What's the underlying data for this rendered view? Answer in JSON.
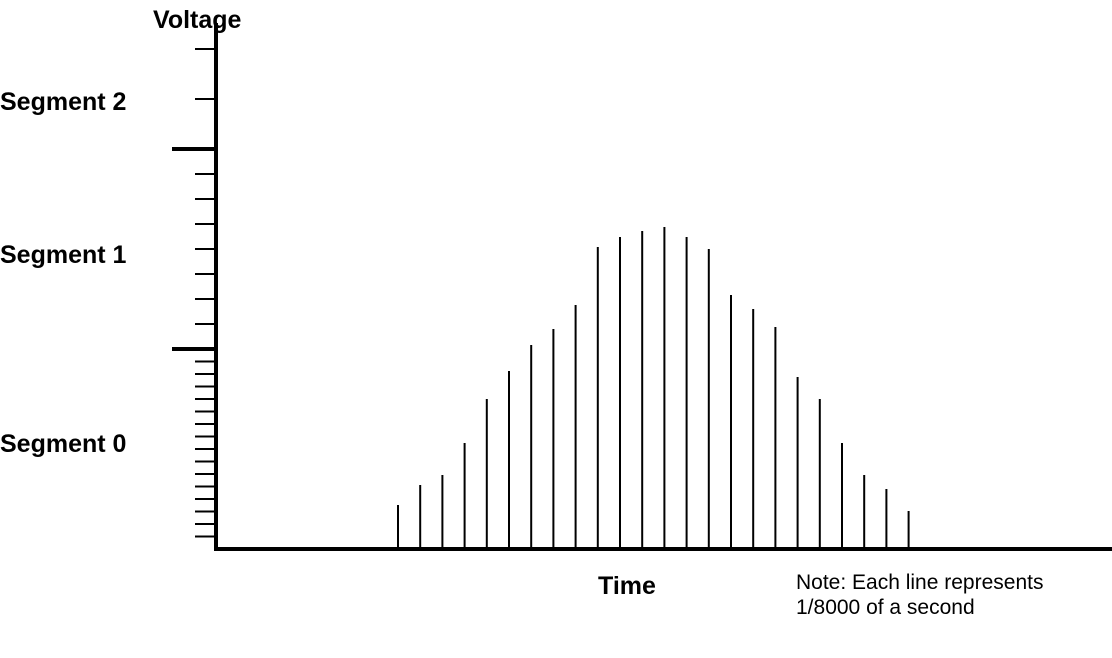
{
  "chart_data": {
    "type": "bar",
    "ylabel": "Voltage",
    "xlabel": "Time",
    "note": "Note: Each line represents 1/8000 of a second",
    "segments": [
      "Segment 0",
      "Segment 1",
      "Segment 2"
    ],
    "segment_boundaries": [
      0,
      1,
      2,
      2.5
    ],
    "minor_ticks_per_segment": [
      16,
      8,
      4
    ],
    "values": [
      0.22,
      0.32,
      0.37,
      0.53,
      0.75,
      0.89,
      1.02,
      1.1,
      1.22,
      1.51,
      1.56,
      1.59,
      1.61,
      1.56,
      1.5,
      1.27,
      1.2,
      1.11,
      0.86,
      0.75,
      0.53,
      0.37,
      0.3,
      0.19
    ]
  }
}
